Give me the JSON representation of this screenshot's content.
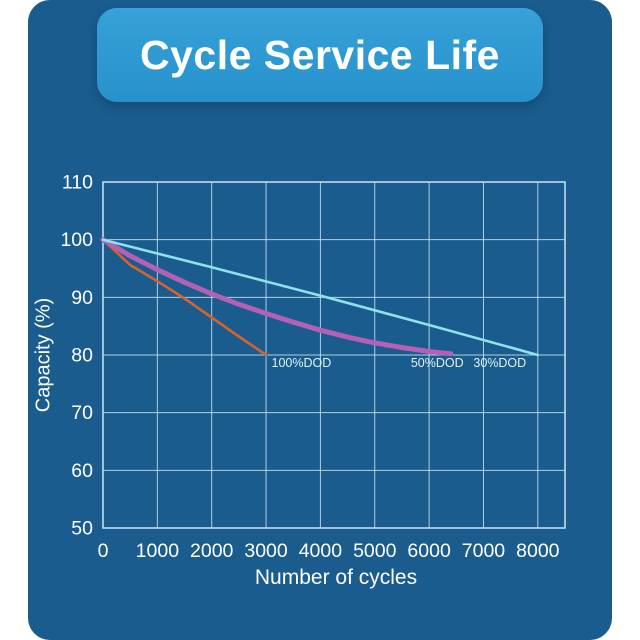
{
  "title": "Cycle Service Life",
  "colors": {
    "background": "#1a5c8e",
    "banner_top": "#36a2d9",
    "banner_bottom": "#2791cb",
    "page_margin": "#ffffff",
    "text": "#ffffff"
  },
  "chart_data": {
    "type": "line",
    "title": "Cycle Service Life",
    "xlabel": "Number of cycles",
    "ylabel": "Capacity (%)",
    "xlim": [
      0,
      8500
    ],
    "ylim": [
      50,
      110
    ],
    "x_ticks": [
      0,
      1000,
      2000,
      3000,
      4000,
      5000,
      6000,
      7000,
      8000
    ],
    "y_ticks": [
      50,
      60,
      70,
      80,
      90,
      100,
      110
    ],
    "grid": true,
    "legend": "inline-annotations",
    "grid_color": "#c9e4f2",
    "axis_text_color": "#ffffff",
    "annotation_color": "#e2f1f9",
    "series": [
      {
        "name": "100%DOD",
        "color": "#d8622b",
        "width": 2.6,
        "x": [
          0,
          500,
          1000,
          1500,
          2000,
          2500,
          3000
        ],
        "y": [
          100,
          95.6,
          92.8,
          89.8,
          86.5,
          83.2,
          80
        ]
      },
      {
        "name": "50%DOD",
        "color": "#b360b5",
        "width": 5,
        "x": [
          0,
          500,
          1000,
          1500,
          2000,
          2500,
          3000,
          3500,
          4000,
          4500,
          5000,
          5500,
          6000,
          6400
        ],
        "y": [
          100,
          97.2,
          94.8,
          92.6,
          90.6,
          88.8,
          87.2,
          85.7,
          84.3,
          83.1,
          82.1,
          81.3,
          80.6,
          80.2
        ]
      },
      {
        "name": "30%DOD",
        "color": "#8fe1ec",
        "width": 2.6,
        "x": [
          0,
          2000,
          4000,
          6000,
          8000
        ],
        "y": [
          100,
          95.2,
          90.3,
          85.2,
          80
        ]
      }
    ],
    "annotations": [
      {
        "text": "100%DOD",
        "x": 3650,
        "y": 77.9
      },
      {
        "text": "50%DOD",
        "x": 6150,
        "y": 77.9
      },
      {
        "text": "30%DOD",
        "x": 7300,
        "y": 77.9
      }
    ]
  }
}
